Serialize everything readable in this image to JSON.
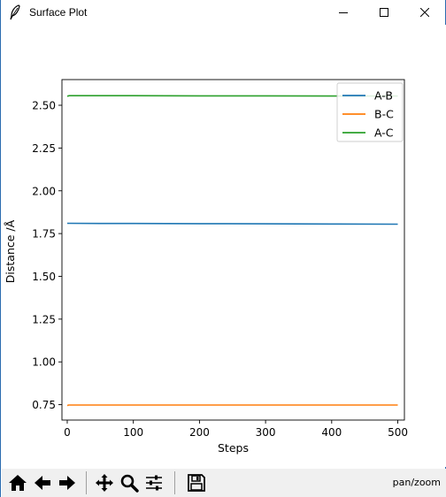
{
  "window": {
    "title": "Surface Plot",
    "icon": "feather-icon"
  },
  "window_controls": {
    "minimize_icon": "minimize-icon",
    "maximize_icon": "maximize-icon",
    "close_icon": "close-icon"
  },
  "toolbar": {
    "tools": [
      {
        "name": "home-icon"
      },
      {
        "name": "back-arrow-icon"
      },
      {
        "name": "forward-arrow-icon"
      },
      {
        "name": "pan-icon"
      },
      {
        "name": "zoom-magnifier-icon"
      },
      {
        "name": "configure-subplots-icon"
      },
      {
        "name": "save-floppy-icon"
      }
    ],
    "status": "pan/zoom"
  },
  "chart_data": {
    "type": "line",
    "xlabel": "Steps",
    "ylabel": "Distance /Å",
    "xlim": [
      -8,
      510
    ],
    "ylim": [
      0.66,
      2.65
    ],
    "xticks": [
      0,
      100,
      200,
      300,
      400,
      500
    ],
    "xtick_labels": [
      "0",
      "100",
      "200",
      "300",
      "400",
      "500"
    ],
    "yticks": [
      0.75,
      1.0,
      1.25,
      1.5,
      1.75,
      2.0,
      2.25,
      2.5
    ],
    "ytick_labels": [
      "0.75",
      "1.00",
      "1.25",
      "1.50",
      "1.75",
      "2.00",
      "2.25",
      "2.50"
    ],
    "grid": false,
    "legend": "top-right",
    "series": [
      {
        "name": "A-B",
        "color": "#1f77b4",
        "x": [
          0,
          1,
          50,
          100,
          200,
          300,
          400,
          500
        ],
        "y": [
          1.81,
          1.81,
          1.809,
          1.809,
          1.808,
          1.807,
          1.806,
          1.805
        ]
      },
      {
        "name": "B-C",
        "color": "#ff7f0e",
        "x": [
          0,
          2,
          50,
          100,
          200,
          300,
          400,
          500
        ],
        "y": [
          0.745,
          0.748,
          0.748,
          0.748,
          0.748,
          0.748,
          0.748,
          0.748
        ]
      },
      {
        "name": "A-C",
        "color": "#2ca02c",
        "x": [
          0,
          3,
          50,
          100,
          200,
          300,
          400,
          500
        ],
        "y": [
          2.553,
          2.556,
          2.556,
          2.556,
          2.555,
          2.555,
          2.554,
          2.554
        ]
      }
    ]
  }
}
